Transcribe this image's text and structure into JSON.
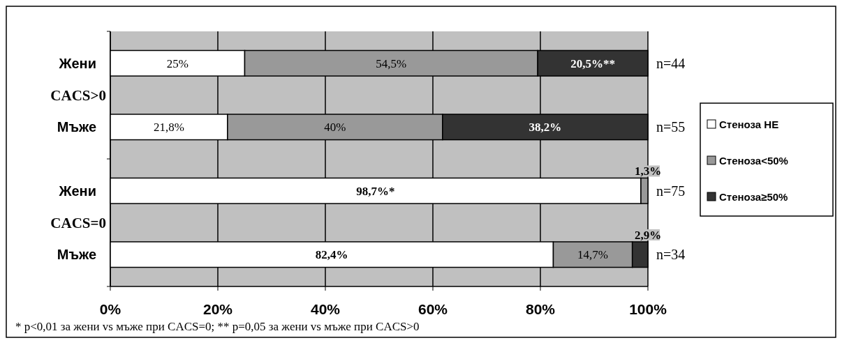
{
  "chart_data": {
    "type": "bar",
    "orientation": "horizontal",
    "stacked": true,
    "categories": [
      "Жени",
      "Мъже",
      "Жени",
      "Мъже"
    ],
    "series": [
      {
        "name": "Стеноза НЕ",
        "color": "#ffffff",
        "values": [
          25,
          21.8,
          98.7,
          82.4
        ],
        "value_labels": [
          "25%",
          "21,8%",
          "98,7%*",
          "82,4%"
        ]
      },
      {
        "name": "Стеноза<50%",
        "color": "#999999",
        "values": [
          54.5,
          40,
          1.3,
          14.7
        ],
        "value_labels": [
          "54,5%",
          "40%",
          "1,3%",
          "14,7%"
        ]
      },
      {
        "name": "Стеноза≥50%",
        "color": "#333333",
        "values": [
          20.5,
          38.2,
          0,
          2.9
        ],
        "value_labels": [
          "20,5%**",
          "38,2%",
          null,
          "2,9%"
        ]
      }
    ],
    "xlim": [
      0,
      100
    ],
    "xticks": [
      {
        "value": 0,
        "label": "0%"
      },
      {
        "value": 20,
        "label": "20%"
      },
      {
        "value": 40,
        "label": "40%"
      },
      {
        "value": 60,
        "label": "60%"
      },
      {
        "value": 80,
        "label": "80%"
      },
      {
        "value": 100,
        "label": "100%"
      }
    ],
    "grid": "x",
    "legend": "right",
    "annotations": [
      "CACS>0",
      "CACS=0",
      "n=44",
      "n=55",
      "n=75",
      "n=34",
      "* p<0,01 за жени vs мъже при CACS=0; ** p=0,05 за жени vs мъже при CACS>0"
    ]
  }
}
